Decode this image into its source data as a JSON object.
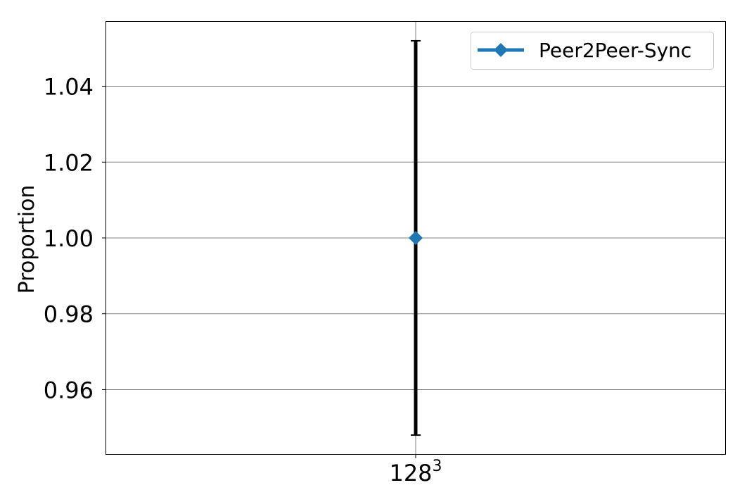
{
  "chart_data": {
    "type": "line",
    "title": "",
    "xlabel": "",
    "ylabel": "Proportion",
    "categories": [
      {
        "base": "128",
        "exponent": "3"
      }
    ],
    "series": [
      {
        "name": "Peer2Peer-Sync",
        "color": "#1f77b4",
        "marker": "diamond",
        "values": [
          1.0
        ],
        "error_low": [
          0.948
        ],
        "error_high": [
          1.052
        ]
      }
    ],
    "error_bar_color": "#000000",
    "ylim": [
      0.943,
      1.057
    ],
    "yticks": [
      0.96,
      0.98,
      1.0,
      1.02,
      1.04
    ],
    "ytick_labels": [
      "0.96",
      "0.98",
      "1.00",
      "1.02",
      "1.04"
    ],
    "grid": true,
    "legend_position": "upper right"
  }
}
